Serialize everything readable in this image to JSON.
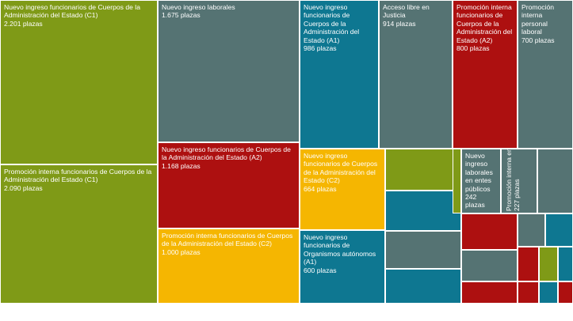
{
  "chart_data": {
    "type": "treemap",
    "unit": "plazas",
    "colors": {
      "olive": "#7f9a17",
      "slate": "#557373",
      "teal": "#0e7791",
      "red": "#ad1010",
      "yellow": "#f5b601"
    },
    "items": [
      {
        "label": "Nuevo ingreso funcionarios de Cuerpos de la Administración del Estado (C1)",
        "value_text": "2.201 plazas",
        "value": 2201,
        "color": "olive"
      },
      {
        "label": "Promoción interna funcionarios de Cuerpos de la Administración del Estado (C1)",
        "value_text": "2.090 plazas",
        "value": 2090,
        "color": "olive"
      },
      {
        "label": "Nuevo ingreso laborales",
        "value_text": "1.675 plazas",
        "value": 1675,
        "color": "slate"
      },
      {
        "label": "Nuevo ingreso funcionarios de Cuerpos de la Administración del Estado (A2)",
        "value_text": "1.168 plazas",
        "value": 1168,
        "color": "red"
      },
      {
        "label": "Promoción interna funcionarios de Cuerpos de la Administración del Estado (C2)",
        "value_text": "1.000 plazas",
        "value": 1000,
        "color": "yellow"
      },
      {
        "label": "Nuevo ingreso funcionarios de Cuerpos de la Administración del Estado (A1)",
        "value_text": "986 plazas",
        "value": 986,
        "color": "teal"
      },
      {
        "label": "Acceso libre en Justicia",
        "value_text": "914 plazas",
        "value": 914,
        "color": "slate"
      },
      {
        "label": "Promoción interna funcionarios de Cuerpos de la Administración del Estado (A2)",
        "value_text": "800 plazas",
        "value": 800,
        "color": "red"
      },
      {
        "label": "Promoción interna personal laboral",
        "value_text": "700 plazas",
        "value": 700,
        "color": "slate"
      },
      {
        "label": "Nuevo ingreso funcionarios de Cuerpos de la Administración del Estado (C2)",
        "value_text": "664 plazas",
        "value": 664,
        "color": "yellow"
      },
      {
        "label": "Nuevo ingreso funcionarios de Organismos autónomos (A1)",
        "value_text": "600 plazas",
        "value": 600,
        "color": "teal"
      },
      {
        "label": "Nuevo ingreso laborales en entes públicos",
        "value_text": "242 plazas",
        "value": 242,
        "color": "slate"
      },
      {
        "label": "Promoción interna en Justicia",
        "value_text": "227 plazas",
        "value": 227,
        "color": "slate"
      }
    ],
    "unlabeled_colors": [
      "olive",
      "teal",
      "slate",
      "teal",
      "olive",
      "slate",
      "red",
      "slate",
      "red",
      "slate",
      "teal",
      "red",
      "olive",
      "teal",
      "red",
      "teal",
      "red",
      "teal"
    ]
  }
}
